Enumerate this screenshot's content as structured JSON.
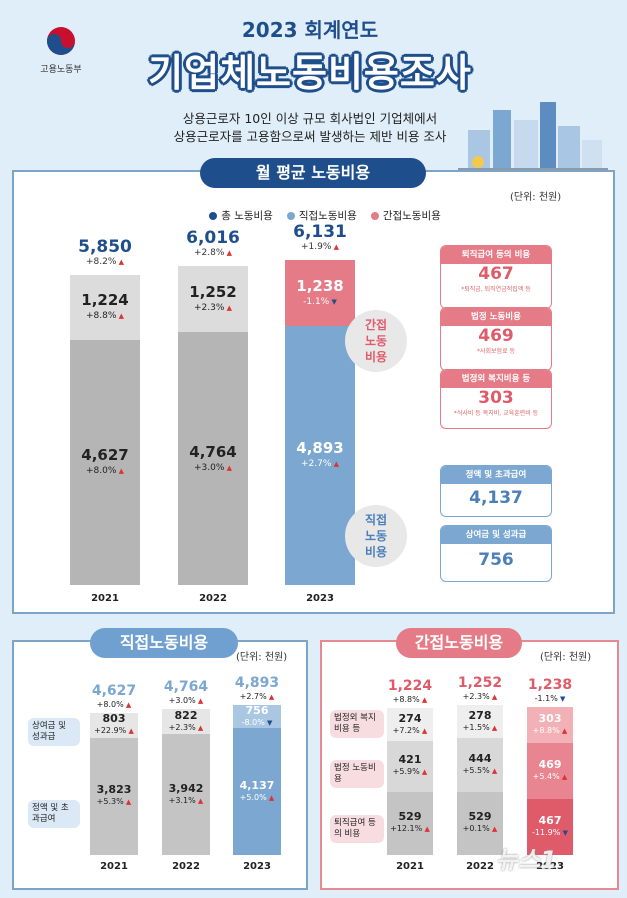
{
  "header": {
    "ministry": "고용노동부",
    "year_title": "2023 회계연도",
    "main_title": "기업체노동비용조사",
    "subtitle_line1": "상용근로자 10인 이상 규모 회사법인 기업체에서",
    "subtitle_line2": "상용근로자를 고용함으로써 발생하는 제반 비용 조사"
  },
  "colors": {
    "navy": "#1f4e8c",
    "blue": "#7ba7d1",
    "pink": "#e57b86",
    "gray_dark": "#b5b5b5",
    "gray_light": "#dcdcdc"
  },
  "section1": {
    "title": "월 평균 노동비용",
    "unit": "(단위: 천원)",
    "legend": [
      "총 노동비용",
      "직접노동비용",
      "간접노동비용"
    ],
    "indirect_bubble": [
      "간접",
      "노동",
      "비용"
    ],
    "direct_bubble": [
      "직접",
      "노동",
      "비용"
    ],
    "indirect_cards": [
      {
        "label": "퇴직급여 등의 비용",
        "value": "467",
        "note": "*퇴직금, 퇴직연금적립액 등"
      },
      {
        "label": "법정 노동비용",
        "value": "469",
        "note": "*사회보험료 등"
      },
      {
        "label": "법정외 복지비용 등",
        "value": "303",
        "note": "*식사비 등 복지비, 교육훈련비 등"
      }
    ],
    "direct_cards": [
      {
        "label": "정액 및 초과급여",
        "value": "4,137"
      },
      {
        "label": "상여금 및 성과급",
        "value": "756"
      }
    ]
  },
  "chart_data": [
    {
      "type": "bar",
      "title": "월 평균 노동비용",
      "unit": "(단위: 천원)",
      "categories": [
        "2021",
        "2022",
        "2023"
      ],
      "series": [
        {
          "name": "직접노동비용",
          "values": [
            4627,
            4764,
            4893
          ],
          "labels": [
            "4,627",
            "4,764",
            "4,893"
          ],
          "changes": [
            "+8.0%",
            "+3.0%",
            "+2.7%"
          ],
          "dirs": [
            "up",
            "up",
            "up"
          ]
        },
        {
          "name": "간접노동비용",
          "values": [
            1224,
            1252,
            1238
          ],
          "labels": [
            "1,224",
            "1,252",
            "1,238"
          ],
          "changes": [
            "+8.8%",
            "+2.3%",
            "-1.1%"
          ],
          "dirs": [
            "up",
            "up",
            "down"
          ]
        }
      ],
      "totals": {
        "name": "총 노동비용",
        "values": [
          5850,
          6016,
          6131
        ],
        "labels": [
          "5,850",
          "6,016",
          "6,131"
        ],
        "changes": [
          "+8.2%",
          "+2.8%",
          "+1.9%"
        ],
        "dirs": [
          "up",
          "up",
          "up"
        ]
      }
    },
    {
      "type": "bar",
      "title": "직접노동비용",
      "unit": "(단위: 천원)",
      "categories": [
        "2021",
        "2022",
        "2023"
      ],
      "series": [
        {
          "name": "정액 및 초과급여",
          "values": [
            3823,
            3942,
            4137
          ],
          "labels": [
            "3,823",
            "3,942",
            "4,137"
          ],
          "changes": [
            "+5.3%",
            "+3.1%",
            "+5.0%"
          ],
          "dirs": [
            "up",
            "up",
            "up"
          ]
        },
        {
          "name": "상여금 및 성과급",
          "values": [
            803,
            822,
            756
          ],
          "labels": [
            "803",
            "822",
            "756"
          ],
          "changes": [
            "+22.9%",
            "+2.3%",
            "-8.0%"
          ],
          "dirs": [
            "up",
            "up",
            "down"
          ]
        }
      ],
      "totals": {
        "values": [
          4627,
          4764,
          4893
        ],
        "labels": [
          "4,627",
          "4,764",
          "4,893"
        ],
        "changes": [
          "+8.0%",
          "+3.0%",
          "+2.7%"
        ],
        "dirs": [
          "up",
          "up",
          "up"
        ]
      },
      "row_tags": [
        "상여금 및 성과급",
        "정액 및 초과급여"
      ]
    },
    {
      "type": "bar",
      "title": "간접노동비용",
      "unit": "(단위: 천원)",
      "categories": [
        "2021",
        "2022",
        "2023"
      ],
      "series": [
        {
          "name": "퇴직급여 등의 비용",
          "values": [
            529,
            529,
            467
          ],
          "labels": [
            "529",
            "529",
            "467"
          ],
          "changes": [
            "+12.1%",
            "+0.1%",
            "-11.9%"
          ],
          "dirs": [
            "up",
            "up",
            "down"
          ]
        },
        {
          "name": "법정 노동비용",
          "values": [
            421,
            444,
            469
          ],
          "labels": [
            "421",
            "444",
            "469"
          ],
          "changes": [
            "+5.9%",
            "+5.5%",
            "+5.4%"
          ],
          "dirs": [
            "up",
            "up",
            "up"
          ]
        },
        {
          "name": "법정외 복지비용 등",
          "values": [
            274,
            278,
            303
          ],
          "labels": [
            "274",
            "278",
            "303"
          ],
          "changes": [
            "+7.2%",
            "+1.5%",
            "+8.8%"
          ],
          "dirs": [
            "up",
            "up",
            "up"
          ]
        }
      ],
      "totals": {
        "values": [
          1224,
          1252,
          1238
        ],
        "labels": [
          "1,224",
          "1,252",
          "1,238"
        ],
        "changes": [
          "+8.8%",
          "+2.3%",
          "-1.1%"
        ],
        "dirs": [
          "up",
          "up",
          "down"
        ]
      },
      "row_tags": [
        "법정외 복지비용 등",
        "법정 노동비용",
        "퇴직급여 등의 비용"
      ]
    }
  ],
  "watermark": "뉴스1"
}
